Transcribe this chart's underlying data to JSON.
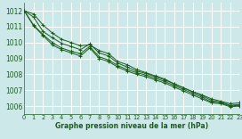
{
  "title": "Graphe pression niveau de la mer (hPa)",
  "bg_color": "#cce8e8",
  "grid_color": "#ffffff",
  "line_color": "#1a5c1a",
  "xlim": [
    0,
    23
  ],
  "ylim": [
    1005.5,
    1012.5
  ],
  "yticks": [
    1006,
    1007,
    1008,
    1009,
    1010,
    1011,
    1012
  ],
  "xticks": [
    0,
    1,
    2,
    3,
    4,
    5,
    6,
    7,
    8,
    9,
    10,
    11,
    12,
    13,
    14,
    15,
    16,
    17,
    18,
    19,
    20,
    21,
    22,
    23
  ],
  "series": [
    [
      1012.0,
      1011.8,
      1011.1,
      1010.6,
      1010.2,
      1010.0,
      1009.8,
      1009.85,
      1009.5,
      1009.3,
      1008.8,
      1008.6,
      1008.3,
      1008.1,
      1007.9,
      1007.7,
      1007.4,
      1007.15,
      1006.9,
      1006.7,
      1006.45,
      1006.3,
      1006.15,
      1006.2
    ],
    [
      1012.0,
      1011.6,
      1010.7,
      1010.3,
      1009.95,
      1009.75,
      1009.55,
      1009.9,
      1009.35,
      1009.15,
      1008.7,
      1008.45,
      1008.2,
      1008.05,
      1007.85,
      1007.65,
      1007.4,
      1007.15,
      1006.9,
      1006.65,
      1006.35,
      1006.25,
      1006.05,
      1006.1
    ],
    [
      1012.0,
      1011.1,
      1010.5,
      1010.0,
      1009.65,
      1009.45,
      1009.3,
      1009.75,
      1009.1,
      1008.9,
      1008.55,
      1008.3,
      1008.1,
      1007.95,
      1007.75,
      1007.55,
      1007.3,
      1007.05,
      1006.8,
      1006.55,
      1006.25,
      1006.2,
      1006.0,
      1006.05
    ],
    [
      1012.0,
      1011.05,
      1010.45,
      1009.85,
      1009.55,
      1009.35,
      1009.15,
      1009.65,
      1009.0,
      1008.8,
      1008.45,
      1008.2,
      1008.0,
      1007.85,
      1007.65,
      1007.45,
      1007.2,
      1006.95,
      1006.7,
      1006.45,
      1006.2,
      1006.15,
      1005.95,
      1006.0
    ]
  ]
}
